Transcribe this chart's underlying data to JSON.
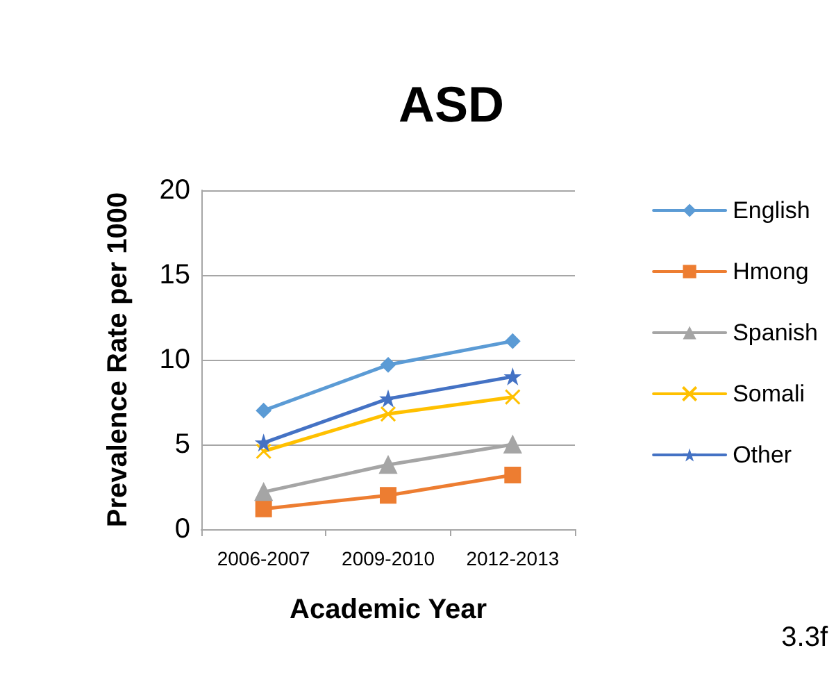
{
  "chart_data": {
    "type": "line",
    "title": "ASD",
    "xlabel": "Academic Year",
    "ylabel": "Prevalence Rate per 1000",
    "categories": [
      "2006-2007",
      "2009-2010",
      "2012-2013"
    ],
    "series": [
      {
        "name": "English",
        "color": "#5b9bd5",
        "marker": "diamond",
        "values": [
          7.0,
          9.7,
          11.1
        ]
      },
      {
        "name": "Hmong",
        "color": "#ed7d31",
        "marker": "square",
        "values": [
          1.2,
          2.0,
          3.2
        ]
      },
      {
        "name": "Spanish",
        "color": "#a5a5a5",
        "marker": "triangle",
        "values": [
          2.2,
          3.8,
          5.0
        ]
      },
      {
        "name": "Somali",
        "color": "#ffc000",
        "marker": "cross",
        "values": [
          4.6,
          6.8,
          7.8
        ]
      },
      {
        "name": "Other",
        "color": "#4472c4",
        "marker": "star",
        "values": [
          5.1,
          7.7,
          9.0
        ]
      }
    ],
    "ylim": [
      0,
      20
    ],
    "yticks": [
      0,
      5,
      10,
      15,
      20
    ],
    "grid": "y",
    "legend": "right",
    "annotations": [
      "3.3f"
    ]
  }
}
